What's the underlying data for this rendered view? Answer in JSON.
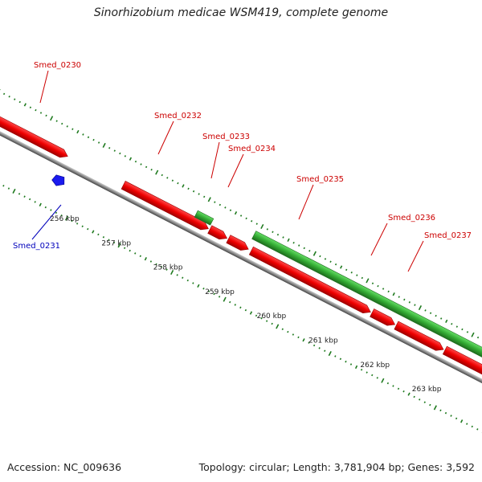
{
  "title": "Sinorhizobium medicae WSM419, complete genome",
  "footer": {
    "accession": "Accession: NC_009636",
    "stats": "Topology: circular; Length: 3,781,904 bp; Genes: 3,592"
  },
  "colors": {
    "forward_gene": "#ff0000",
    "reverse_gene": "#33aa33",
    "forward_label": "#cc0000",
    "reverse_label": "#0000bb",
    "backbone": "#888888",
    "tick": "#1f7a1f"
  },
  "genes": [
    {
      "id": "Smed_0230",
      "label": "Smed_0230",
      "strand": "forward"
    },
    {
      "id": "Smed_0231",
      "label": "Smed_0231",
      "strand": "reverse"
    },
    {
      "id": "Smed_0232",
      "label": "Smed_0232",
      "strand": "forward"
    },
    {
      "id": "Smed_0233",
      "label": "Smed_0233",
      "strand": "forward"
    },
    {
      "id": "Smed_0234",
      "label": "Smed_0234",
      "strand": "forward"
    },
    {
      "id": "Smed_0235",
      "label": "Smed_0235",
      "strand": "forward"
    },
    {
      "id": "Smed_0236",
      "label": "Smed_0236",
      "strand": "forward"
    },
    {
      "id": "Smed_0237",
      "label": "Smed_0237",
      "strand": "forward"
    }
  ],
  "scale_labels": [
    "256 kbp",
    "257 kbp",
    "258 kbp",
    "259 kbp",
    "260 kbp",
    "261 kbp",
    "262 kbp",
    "263 kbp"
  ]
}
